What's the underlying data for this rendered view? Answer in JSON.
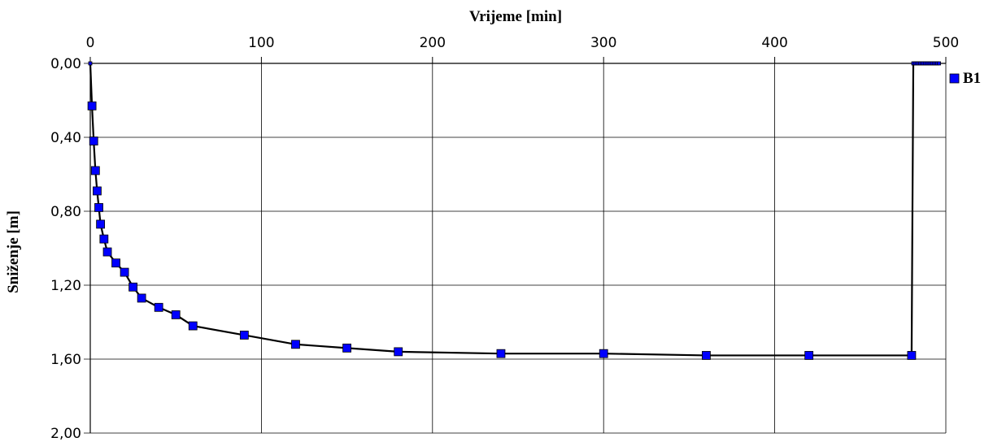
{
  "chart_data": {
    "type": "scatter",
    "xlabel": "Vrijeme [min]",
    "ylabel": "Sniženje [m]",
    "xlim": [
      0,
      500
    ],
    "ylim": [
      0,
      2
    ],
    "y_inverted": true,
    "x_axis_position": "top",
    "x_ticks": [
      0,
      100,
      200,
      300,
      400,
      500
    ],
    "x_tick_labels": [
      "0",
      "100",
      "200",
      "300",
      "400",
      "500"
    ],
    "y_ticks": [
      0,
      0.4,
      0.8,
      1.2,
      1.6,
      2.0
    ],
    "y_tick_labels": [
      "0,00",
      "0,40",
      "0,80",
      "1,20",
      "1,60",
      "2,00"
    ],
    "grid": true,
    "legend_position": "right",
    "series": [
      {
        "name": "B1",
        "color": "#0000ff",
        "line_color": "#000000",
        "marker": "square",
        "x": [
          0,
          1,
          2,
          3,
          4,
          5,
          6,
          8,
          10,
          15,
          20,
          25,
          30,
          40,
          50,
          60,
          90,
          120,
          150,
          180,
          240,
          300,
          360,
          420,
          480,
          481,
          482,
          483,
          484,
          485,
          486,
          487,
          488,
          489,
          490,
          491,
          492,
          493,
          494,
          495,
          496
        ],
        "y": [
          0.0,
          0.23,
          0.42,
          0.58,
          0.69,
          0.78,
          0.87,
          0.95,
          1.02,
          1.08,
          1.13,
          1.21,
          1.27,
          1.32,
          1.36,
          1.42,
          1.47,
          1.52,
          1.54,
          1.56,
          1.57,
          1.57,
          1.58,
          1.58,
          1.58,
          0.0,
          0.0,
          0.0,
          0.0,
          0.0,
          0.0,
          0.0,
          0.0,
          0.0,
          0.0,
          0.0,
          0.0,
          0.0,
          0.0,
          0.0,
          0.0
        ]
      }
    ]
  }
}
